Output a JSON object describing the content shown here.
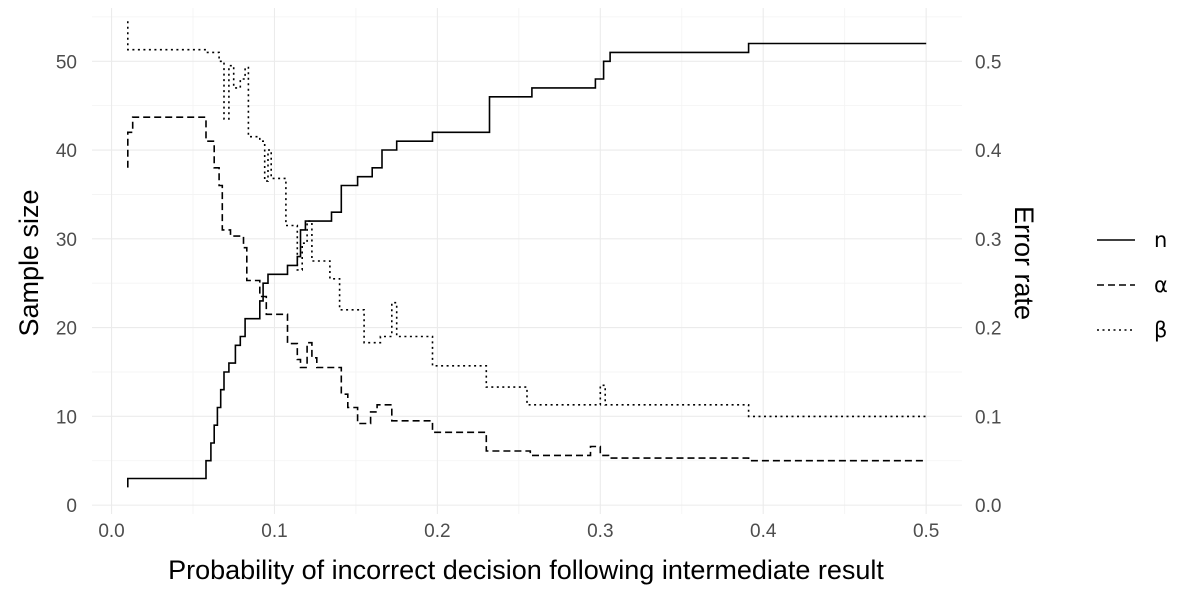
{
  "chart_data": {
    "type": "line",
    "xlabel": "Probability of incorrect decision following intermediate result",
    "ylabel": "Sample size",
    "y2label": "Error rate",
    "xlim": [
      -0.012,
      0.522
    ],
    "ylim": [
      -1,
      56
    ],
    "y2lim": [
      -0.01,
      0.56
    ],
    "x_ticks": [
      "0.0",
      "0.1",
      "0.2",
      "0.3",
      "0.4",
      "0.5"
    ],
    "y_ticks": [
      "0",
      "10",
      "20",
      "30",
      "40",
      "50"
    ],
    "y2_ticks": [
      "0.0",
      "0.1",
      "0.2",
      "0.3",
      "0.4",
      "0.5"
    ],
    "grid": true,
    "legend_position": "right",
    "series": [
      {
        "name": "n",
        "axis": "left",
        "dash": "solid",
        "points": [
          [
            0.01,
            2
          ],
          [
            0.01,
            3
          ],
          [
            0.058,
            3
          ],
          [
            0.058,
            5
          ],
          [
            0.061,
            5
          ],
          [
            0.061,
            7
          ],
          [
            0.063,
            7
          ],
          [
            0.063,
            9
          ],
          [
            0.065,
            9
          ],
          [
            0.065,
            11
          ],
          [
            0.067,
            11
          ],
          [
            0.067,
            13
          ],
          [
            0.069,
            13
          ],
          [
            0.069,
            15
          ],
          [
            0.072,
            15
          ],
          [
            0.072,
            16
          ],
          [
            0.076,
            16
          ],
          [
            0.076,
            18
          ],
          [
            0.079,
            18
          ],
          [
            0.079,
            19
          ],
          [
            0.082,
            19
          ],
          [
            0.082,
            21
          ],
          [
            0.091,
            21
          ],
          [
            0.091,
            23
          ],
          [
            0.093,
            23
          ],
          [
            0.093,
            25
          ],
          [
            0.096,
            25
          ],
          [
            0.096,
            26
          ],
          [
            0.108,
            26
          ],
          [
            0.108,
            27
          ],
          [
            0.114,
            27
          ],
          [
            0.114,
            28
          ],
          [
            0.116,
            28
          ],
          [
            0.116,
            31
          ],
          [
            0.119,
            31
          ],
          [
            0.119,
            32
          ],
          [
            0.135,
            32
          ],
          [
            0.135,
            33
          ],
          [
            0.141,
            33
          ],
          [
            0.141,
            36
          ],
          [
            0.151,
            36
          ],
          [
            0.151,
            37
          ],
          [
            0.16,
            37
          ],
          [
            0.16,
            38
          ],
          [
            0.166,
            38
          ],
          [
            0.166,
            40
          ],
          [
            0.175,
            40
          ],
          [
            0.175,
            41
          ],
          [
            0.197,
            41
          ],
          [
            0.197,
            42
          ],
          [
            0.232,
            42
          ],
          [
            0.232,
            46
          ],
          [
            0.258,
            46
          ],
          [
            0.258,
            47
          ],
          [
            0.297,
            47
          ],
          [
            0.297,
            48
          ],
          [
            0.302,
            48
          ],
          [
            0.302,
            50
          ],
          [
            0.306,
            50
          ],
          [
            0.306,
            51
          ],
          [
            0.391,
            51
          ],
          [
            0.391,
            52
          ],
          [
            0.5,
            52
          ]
        ]
      },
      {
        "name": "α",
        "axis": "right",
        "dash": "dashed",
        "points": [
          [
            0.01,
            0.38
          ],
          [
            0.01,
            0.42
          ],
          [
            0.013,
            0.42
          ],
          [
            0.013,
            0.437
          ],
          [
            0.058,
            0.437
          ],
          [
            0.058,
            0.41
          ],
          [
            0.063,
            0.41
          ],
          [
            0.063,
            0.38
          ],
          [
            0.066,
            0.38
          ],
          [
            0.066,
            0.36
          ],
          [
            0.068,
            0.36
          ],
          [
            0.068,
            0.31
          ],
          [
            0.073,
            0.31
          ],
          [
            0.073,
            0.303
          ],
          [
            0.081,
            0.303
          ],
          [
            0.081,
            0.29
          ],
          [
            0.083,
            0.29
          ],
          [
            0.083,
            0.253
          ],
          [
            0.091,
            0.253
          ],
          [
            0.091,
            0.235
          ],
          [
            0.095,
            0.235
          ],
          [
            0.095,
            0.215
          ],
          [
            0.108,
            0.215
          ],
          [
            0.108,
            0.182
          ],
          [
            0.114,
            0.182
          ],
          [
            0.114,
            0.164
          ],
          [
            0.116,
            0.164
          ],
          [
            0.116,
            0.155
          ],
          [
            0.12,
            0.155
          ],
          [
            0.12,
            0.183
          ],
          [
            0.123,
            0.183
          ],
          [
            0.123,
            0.166
          ],
          [
            0.126,
            0.166
          ],
          [
            0.126,
            0.155
          ],
          [
            0.141,
            0.155
          ],
          [
            0.141,
            0.125
          ],
          [
            0.145,
            0.125
          ],
          [
            0.145,
            0.11
          ],
          [
            0.151,
            0.11
          ],
          [
            0.151,
            0.092
          ],
          [
            0.159,
            0.092
          ],
          [
            0.159,
            0.105
          ],
          [
            0.163,
            0.105
          ],
          [
            0.163,
            0.113
          ],
          [
            0.172,
            0.113
          ],
          [
            0.172,
            0.095
          ],
          [
            0.197,
            0.095
          ],
          [
            0.197,
            0.082
          ],
          [
            0.23,
            0.082
          ],
          [
            0.23,
            0.061
          ],
          [
            0.257,
            0.061
          ],
          [
            0.257,
            0.056
          ],
          [
            0.294,
            0.056
          ],
          [
            0.294,
            0.066
          ],
          [
            0.3,
            0.066
          ],
          [
            0.3,
            0.056
          ],
          [
            0.305,
            0.056
          ],
          [
            0.305,
            0.053
          ],
          [
            0.391,
            0.053
          ],
          [
            0.391,
            0.05
          ],
          [
            0.5,
            0.05
          ]
        ]
      },
      {
        "name": "β",
        "axis": "right",
        "dash": "dotted",
        "points": [
          [
            0.01,
            0.545
          ],
          [
            0.01,
            0.513
          ],
          [
            0.058,
            0.513
          ],
          [
            0.058,
            0.51
          ],
          [
            0.066,
            0.51
          ],
          [
            0.066,
            0.5
          ],
          [
            0.069,
            0.5
          ],
          [
            0.069,
            0.435
          ],
          [
            0.072,
            0.435
          ],
          [
            0.072,
            0.495
          ],
          [
            0.075,
            0.495
          ],
          [
            0.075,
            0.47
          ],
          [
            0.079,
            0.47
          ],
          [
            0.079,
            0.48
          ],
          [
            0.082,
            0.48
          ],
          [
            0.082,
            0.493
          ],
          [
            0.084,
            0.493
          ],
          [
            0.084,
            0.415
          ],
          [
            0.091,
            0.415
          ],
          [
            0.091,
            0.41
          ],
          [
            0.094,
            0.41
          ],
          [
            0.094,
            0.365
          ],
          [
            0.096,
            0.365
          ],
          [
            0.096,
            0.4
          ],
          [
            0.098,
            0.4
          ],
          [
            0.098,
            0.368
          ],
          [
            0.107,
            0.368
          ],
          [
            0.107,
            0.315
          ],
          [
            0.114,
            0.315
          ],
          [
            0.114,
            0.265
          ],
          [
            0.117,
            0.265
          ],
          [
            0.117,
            0.295
          ],
          [
            0.12,
            0.295
          ],
          [
            0.12,
            0.32
          ],
          [
            0.123,
            0.32
          ],
          [
            0.123,
            0.275
          ],
          [
            0.134,
            0.275
          ],
          [
            0.134,
            0.255
          ],
          [
            0.14,
            0.255
          ],
          [
            0.14,
            0.22
          ],
          [
            0.155,
            0.22
          ],
          [
            0.155,
            0.183
          ],
          [
            0.165,
            0.183
          ],
          [
            0.165,
            0.19
          ],
          [
            0.172,
            0.19
          ],
          [
            0.172,
            0.228
          ],
          [
            0.175,
            0.228
          ],
          [
            0.175,
            0.19
          ],
          [
            0.197,
            0.19
          ],
          [
            0.197,
            0.157
          ],
          [
            0.23,
            0.157
          ],
          [
            0.23,
            0.133
          ],
          [
            0.255,
            0.133
          ],
          [
            0.255,
            0.113
          ],
          [
            0.3,
            0.113
          ],
          [
            0.3,
            0.135
          ],
          [
            0.303,
            0.135
          ],
          [
            0.303,
            0.113
          ],
          [
            0.391,
            0.113
          ],
          [
            0.391,
            0.1
          ],
          [
            0.5,
            0.1
          ]
        ]
      }
    ]
  }
}
